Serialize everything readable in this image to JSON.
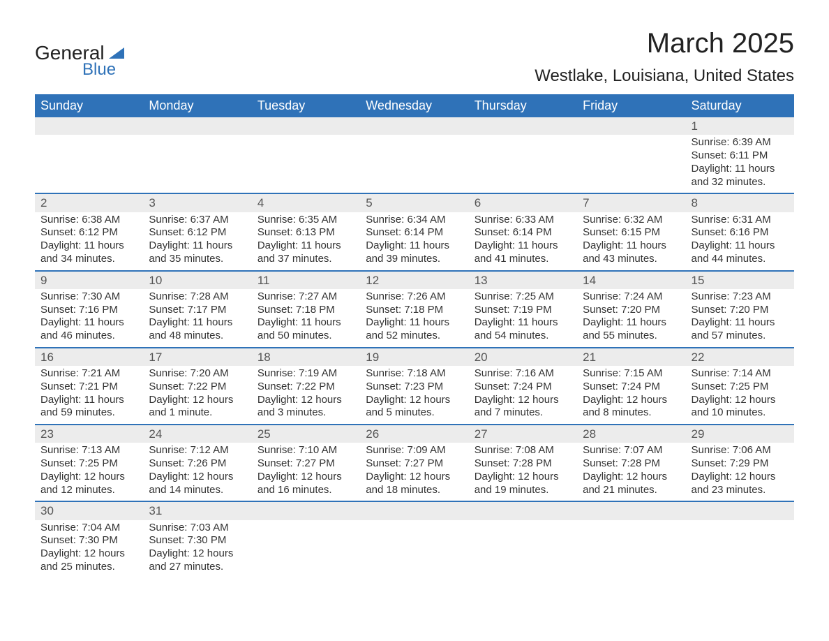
{
  "logo": {
    "text1": "General",
    "text2": "Blue"
  },
  "title": "March 2025",
  "location": "Westlake, Louisiana, United States",
  "colors": {
    "header_bg": "#2f72b8",
    "header_text": "#ffffff",
    "daynum_bg": "#ececec",
    "row_border": "#2f72b8",
    "body_text": "#333333",
    "title_text": "#222222"
  },
  "typography": {
    "title_fontsize": 40,
    "location_fontsize": 24,
    "header_fontsize": 18,
    "cell_fontsize": 15
  },
  "day_labels": [
    "Sunday",
    "Monday",
    "Tuesday",
    "Wednesday",
    "Thursday",
    "Friday",
    "Saturday"
  ],
  "weeks": [
    {
      "nums": [
        "",
        "",
        "",
        "",
        "",
        "",
        "1"
      ],
      "data": [
        null,
        null,
        null,
        null,
        null,
        null,
        {
          "sunrise": "Sunrise: 6:39 AM",
          "sunset": "Sunset: 6:11 PM",
          "day1": "Daylight: 11 hours",
          "day2": "and 32 minutes."
        }
      ]
    },
    {
      "nums": [
        "2",
        "3",
        "4",
        "5",
        "6",
        "7",
        "8"
      ],
      "data": [
        {
          "sunrise": "Sunrise: 6:38 AM",
          "sunset": "Sunset: 6:12 PM",
          "day1": "Daylight: 11 hours",
          "day2": "and 34 minutes."
        },
        {
          "sunrise": "Sunrise: 6:37 AM",
          "sunset": "Sunset: 6:12 PM",
          "day1": "Daylight: 11 hours",
          "day2": "and 35 minutes."
        },
        {
          "sunrise": "Sunrise: 6:35 AM",
          "sunset": "Sunset: 6:13 PM",
          "day1": "Daylight: 11 hours",
          "day2": "and 37 minutes."
        },
        {
          "sunrise": "Sunrise: 6:34 AM",
          "sunset": "Sunset: 6:14 PM",
          "day1": "Daylight: 11 hours",
          "day2": "and 39 minutes."
        },
        {
          "sunrise": "Sunrise: 6:33 AM",
          "sunset": "Sunset: 6:14 PM",
          "day1": "Daylight: 11 hours",
          "day2": "and 41 minutes."
        },
        {
          "sunrise": "Sunrise: 6:32 AM",
          "sunset": "Sunset: 6:15 PM",
          "day1": "Daylight: 11 hours",
          "day2": "and 43 minutes."
        },
        {
          "sunrise": "Sunrise: 6:31 AM",
          "sunset": "Sunset: 6:16 PM",
          "day1": "Daylight: 11 hours",
          "day2": "and 44 minutes."
        }
      ]
    },
    {
      "nums": [
        "9",
        "10",
        "11",
        "12",
        "13",
        "14",
        "15"
      ],
      "data": [
        {
          "sunrise": "Sunrise: 7:30 AM",
          "sunset": "Sunset: 7:16 PM",
          "day1": "Daylight: 11 hours",
          "day2": "and 46 minutes."
        },
        {
          "sunrise": "Sunrise: 7:28 AM",
          "sunset": "Sunset: 7:17 PM",
          "day1": "Daylight: 11 hours",
          "day2": "and 48 minutes."
        },
        {
          "sunrise": "Sunrise: 7:27 AM",
          "sunset": "Sunset: 7:18 PM",
          "day1": "Daylight: 11 hours",
          "day2": "and 50 minutes."
        },
        {
          "sunrise": "Sunrise: 7:26 AM",
          "sunset": "Sunset: 7:18 PM",
          "day1": "Daylight: 11 hours",
          "day2": "and 52 minutes."
        },
        {
          "sunrise": "Sunrise: 7:25 AM",
          "sunset": "Sunset: 7:19 PM",
          "day1": "Daylight: 11 hours",
          "day2": "and 54 minutes."
        },
        {
          "sunrise": "Sunrise: 7:24 AM",
          "sunset": "Sunset: 7:20 PM",
          "day1": "Daylight: 11 hours",
          "day2": "and 55 minutes."
        },
        {
          "sunrise": "Sunrise: 7:23 AM",
          "sunset": "Sunset: 7:20 PM",
          "day1": "Daylight: 11 hours",
          "day2": "and 57 minutes."
        }
      ]
    },
    {
      "nums": [
        "16",
        "17",
        "18",
        "19",
        "20",
        "21",
        "22"
      ],
      "data": [
        {
          "sunrise": "Sunrise: 7:21 AM",
          "sunset": "Sunset: 7:21 PM",
          "day1": "Daylight: 11 hours",
          "day2": "and 59 minutes."
        },
        {
          "sunrise": "Sunrise: 7:20 AM",
          "sunset": "Sunset: 7:22 PM",
          "day1": "Daylight: 12 hours",
          "day2": "and 1 minute."
        },
        {
          "sunrise": "Sunrise: 7:19 AM",
          "sunset": "Sunset: 7:22 PM",
          "day1": "Daylight: 12 hours",
          "day2": "and 3 minutes."
        },
        {
          "sunrise": "Sunrise: 7:18 AM",
          "sunset": "Sunset: 7:23 PM",
          "day1": "Daylight: 12 hours",
          "day2": "and 5 minutes."
        },
        {
          "sunrise": "Sunrise: 7:16 AM",
          "sunset": "Sunset: 7:24 PM",
          "day1": "Daylight: 12 hours",
          "day2": "and 7 minutes."
        },
        {
          "sunrise": "Sunrise: 7:15 AM",
          "sunset": "Sunset: 7:24 PM",
          "day1": "Daylight: 12 hours",
          "day2": "and 8 minutes."
        },
        {
          "sunrise": "Sunrise: 7:14 AM",
          "sunset": "Sunset: 7:25 PM",
          "day1": "Daylight: 12 hours",
          "day2": "and 10 minutes."
        }
      ]
    },
    {
      "nums": [
        "23",
        "24",
        "25",
        "26",
        "27",
        "28",
        "29"
      ],
      "data": [
        {
          "sunrise": "Sunrise: 7:13 AM",
          "sunset": "Sunset: 7:25 PM",
          "day1": "Daylight: 12 hours",
          "day2": "and 12 minutes."
        },
        {
          "sunrise": "Sunrise: 7:12 AM",
          "sunset": "Sunset: 7:26 PM",
          "day1": "Daylight: 12 hours",
          "day2": "and 14 minutes."
        },
        {
          "sunrise": "Sunrise: 7:10 AM",
          "sunset": "Sunset: 7:27 PM",
          "day1": "Daylight: 12 hours",
          "day2": "and 16 minutes."
        },
        {
          "sunrise": "Sunrise: 7:09 AM",
          "sunset": "Sunset: 7:27 PM",
          "day1": "Daylight: 12 hours",
          "day2": "and 18 minutes."
        },
        {
          "sunrise": "Sunrise: 7:08 AM",
          "sunset": "Sunset: 7:28 PM",
          "day1": "Daylight: 12 hours",
          "day2": "and 19 minutes."
        },
        {
          "sunrise": "Sunrise: 7:07 AM",
          "sunset": "Sunset: 7:28 PM",
          "day1": "Daylight: 12 hours",
          "day2": "and 21 minutes."
        },
        {
          "sunrise": "Sunrise: 7:06 AM",
          "sunset": "Sunset: 7:29 PM",
          "day1": "Daylight: 12 hours",
          "day2": "and 23 minutes."
        }
      ]
    },
    {
      "nums": [
        "30",
        "31",
        "",
        "",
        "",
        "",
        ""
      ],
      "data": [
        {
          "sunrise": "Sunrise: 7:04 AM",
          "sunset": "Sunset: 7:30 PM",
          "day1": "Daylight: 12 hours",
          "day2": "and 25 minutes."
        },
        {
          "sunrise": "Sunrise: 7:03 AM",
          "sunset": "Sunset: 7:30 PM",
          "day1": "Daylight: 12 hours",
          "day2": "and 27 minutes."
        },
        null,
        null,
        null,
        null,
        null
      ]
    }
  ]
}
